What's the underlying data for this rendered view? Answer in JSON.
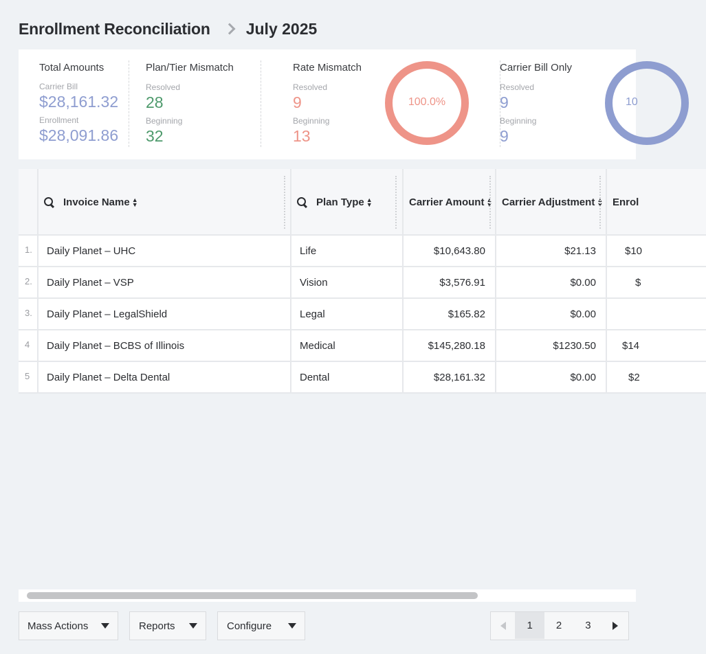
{
  "header": {
    "title": "Enrollment Reconciliation",
    "period": "July 2025"
  },
  "summary": {
    "total": {
      "title": "Total Amounts",
      "carrier_label": "Carrier Bill",
      "carrier_value": "$28,161.32",
      "enrollment_label": "Enrollment",
      "enrollment_value": "$28,091.86"
    },
    "plan_tier": {
      "title": "Plan/Tier Mismatch",
      "resolved_label": "Resolved",
      "resolved_value": "28",
      "beginning_label": "Beginning",
      "beginning_value": "32"
    },
    "rate": {
      "title": "Rate Mismatch",
      "resolved_label": "Resolved",
      "resolved_value": "9",
      "beginning_label": "Beginning",
      "beginning_value": "13",
      "donut_label": "100.0%"
    },
    "carrier_only": {
      "title": "Carrier Bill Only",
      "resolved_label": "Resolved",
      "resolved_value": "9",
      "beginning_label": "Beginning",
      "beginning_value": "9",
      "donut_label": "10"
    }
  },
  "colors": {
    "carrier": "#8e9dd0",
    "plan": "#4e9a6c",
    "rate": "#ee9488",
    "carrier_only": "#8e9dd0"
  },
  "table": {
    "columns": [
      "Invoice Name",
      "Plan Type",
      "Carrier Amount",
      "Carrier Adjustment",
      "Enrol"
    ],
    "rows": [
      {
        "idx": "1.",
        "name": "Daily Planet – UHC",
        "plan": "Life",
        "carrier": "$10,643.80",
        "adjust": "$21.13",
        "enrol": "$10"
      },
      {
        "idx": "2.",
        "name": "Daily Planet – VSP",
        "plan": "Vision",
        "carrier": "$3,576.91",
        "adjust": "$0.00",
        "enrol": "$"
      },
      {
        "idx": "3.",
        "name": "Daily Planet – LegalShield",
        "plan": "Legal",
        "carrier": "$165.82",
        "adjust": "$0.00",
        "enrol": ""
      },
      {
        "idx": "4",
        "name": "Daily Planet – BCBS of Illinois",
        "plan": "Medical",
        "carrier": "$145,280.18",
        "adjust": "$1230.50",
        "enrol": "$14"
      },
      {
        "idx": "5",
        "name": "Daily Planet – Delta Dental",
        "plan": "Dental",
        "carrier": "$28,161.32",
        "adjust": "$0.00",
        "enrol": "$2"
      }
    ]
  },
  "footer": {
    "mass_actions": "Mass Actions",
    "reports": "Reports",
    "configure": "Configure",
    "pages": [
      "1",
      "2",
      "3"
    ],
    "current_page": "1"
  }
}
